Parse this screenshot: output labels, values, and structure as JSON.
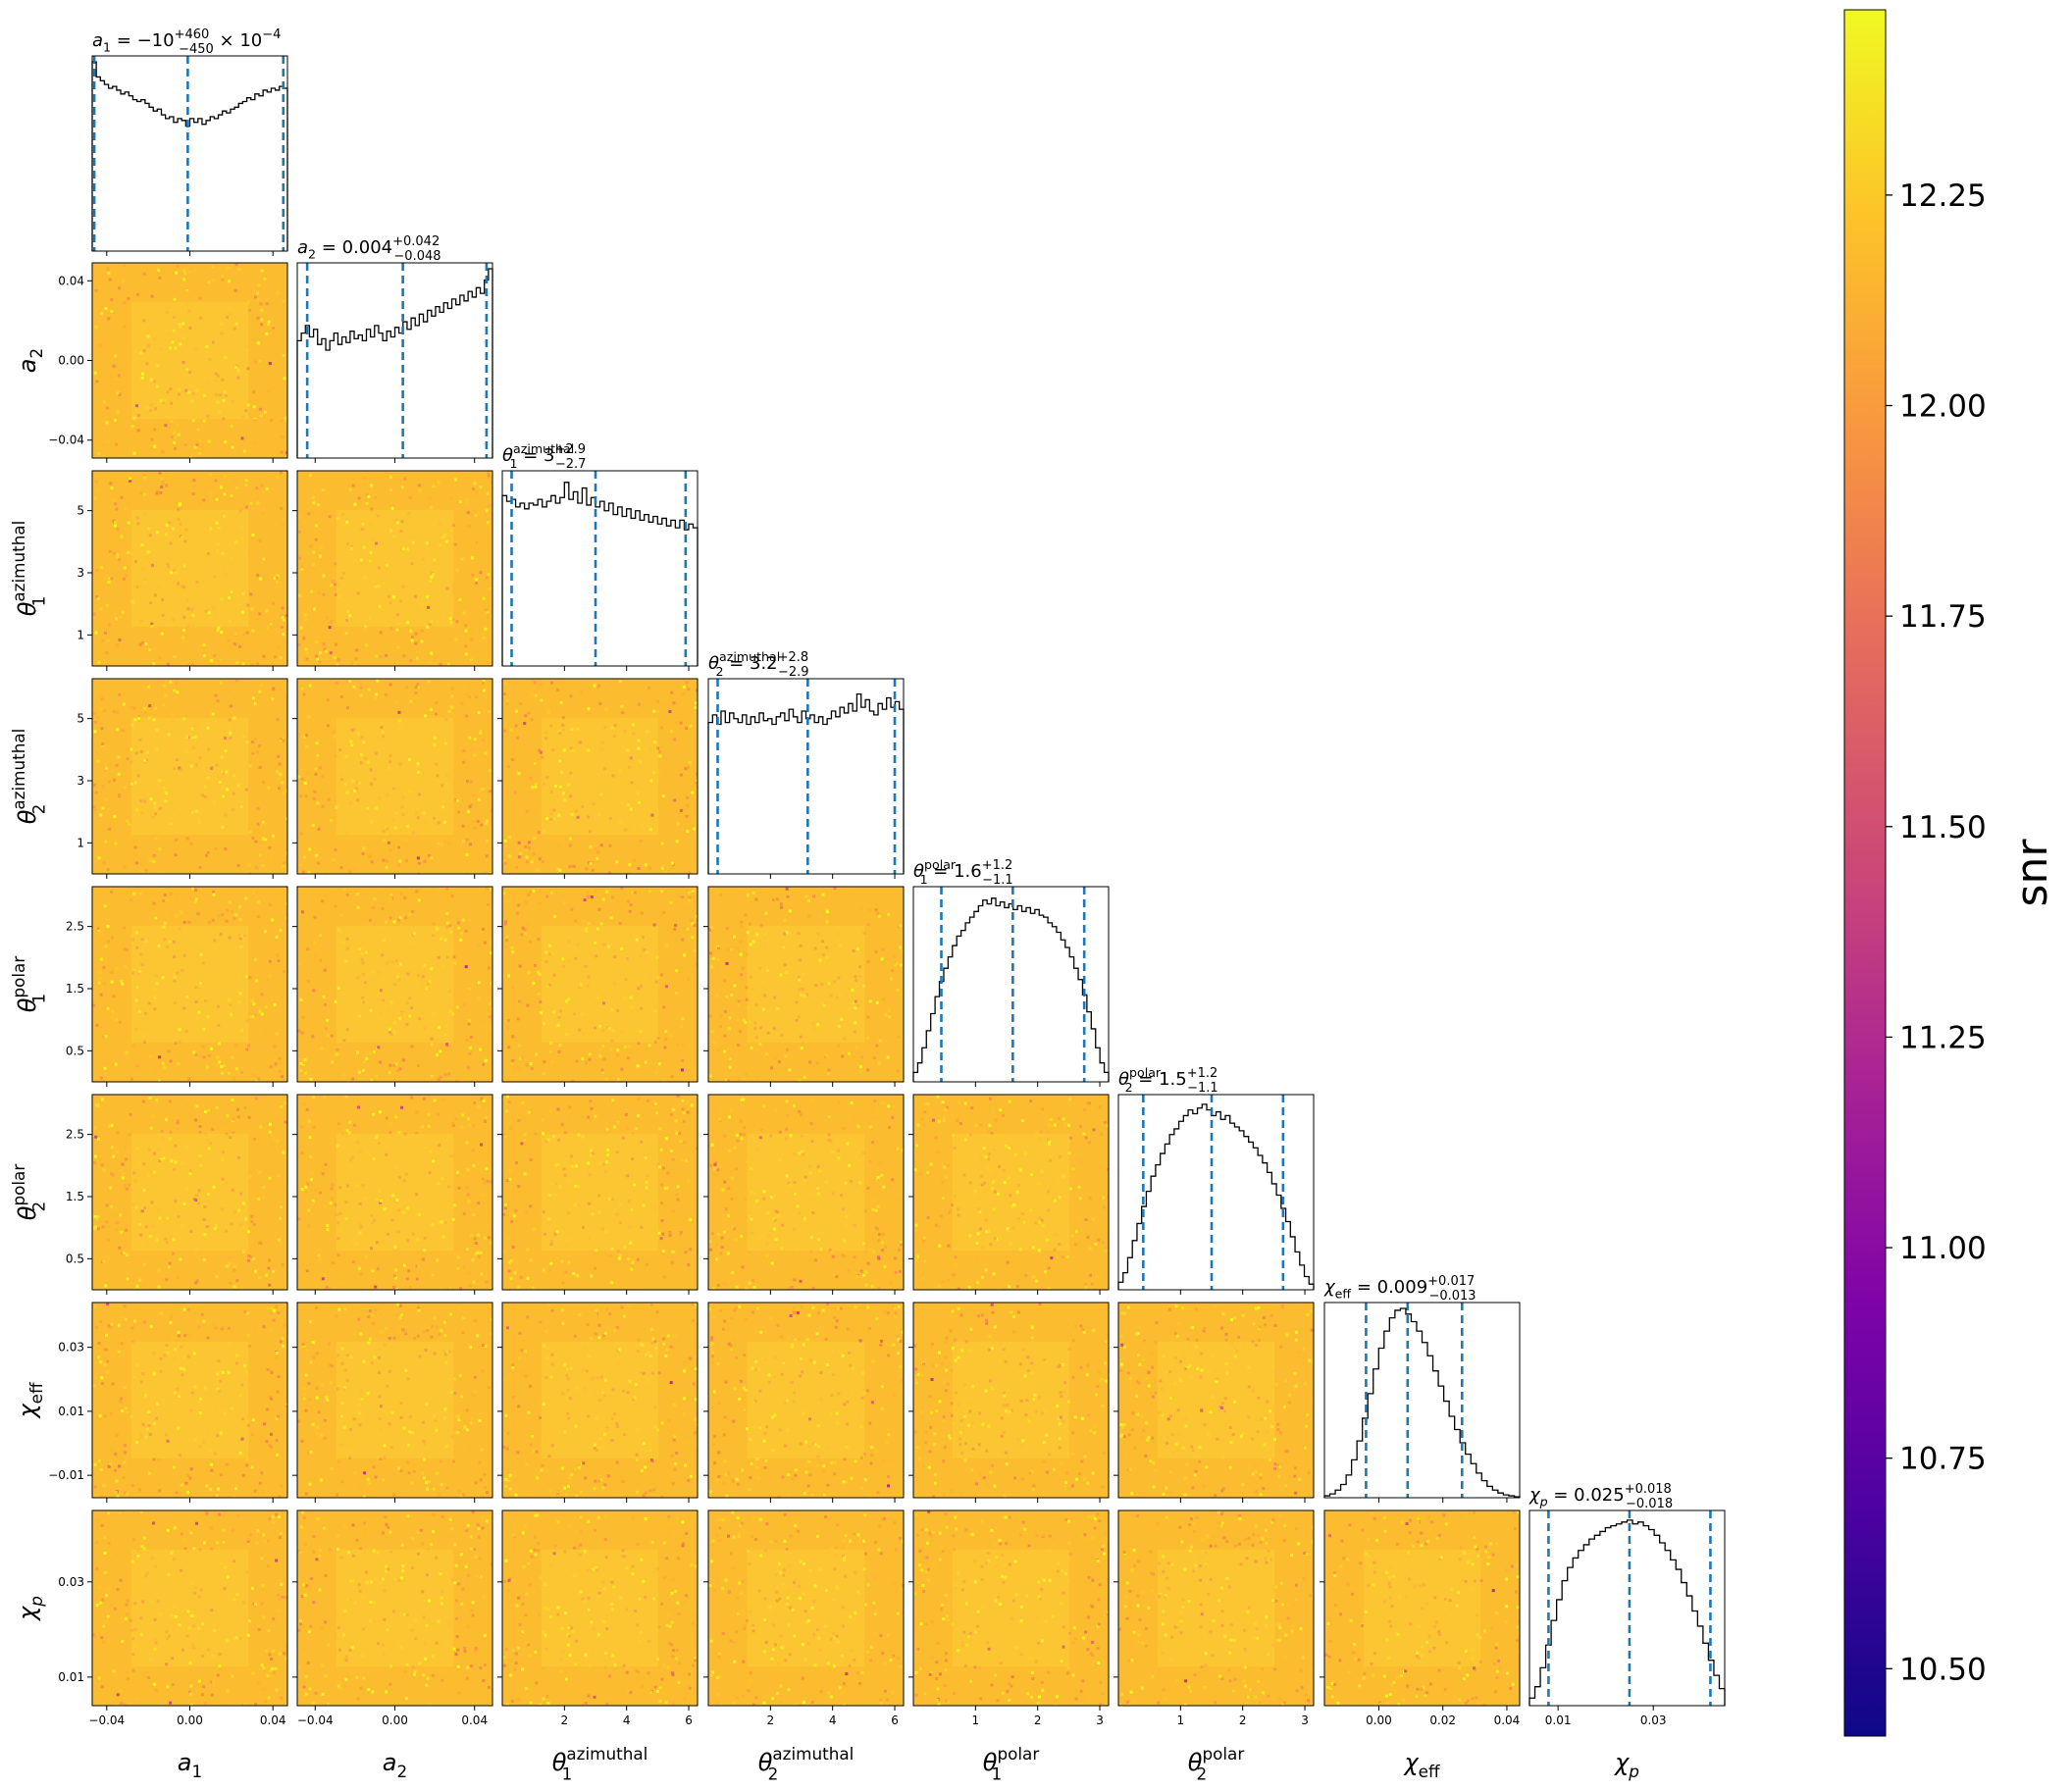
{
  "chart_data": {
    "type": "corner",
    "colormap": "plasma",
    "colorbar": {
      "label": "snr",
      "range": [
        10.42,
        12.47
      ],
      "ticks": [
        "10.50",
        "10.75",
        "11.00",
        "11.25",
        "11.50",
        "11.75",
        "12.00",
        "12.25"
      ],
      "tick_values": [
        10.5,
        10.75,
        11.0,
        11.25,
        11.5,
        11.75,
        12.0,
        12.25
      ]
    },
    "hist_color": "#000000",
    "quantile_line_color": "#1f77b4",
    "parameters": [
      {
        "id": "a1",
        "base": "a",
        "sub": "1",
        "sup": "",
        "range": [
          -0.047,
          0.047
        ],
        "ticks": [
          -0.04,
          0.0,
          0.04
        ],
        "tick_labels": [
          "−0.04",
          "0.00",
          "0.04"
        ],
        "title": {
          "pre": " = −10",
          "sup": "+460",
          "sub": "−450",
          "post": " × 10",
          "post_sup": "−4"
        },
        "quantiles": [
          -0.046,
          -0.001,
          0.045
        ],
        "hist": [
          1.0,
          0.92,
          0.9,
          0.88,
          0.86,
          0.87,
          0.85,
          0.83,
          0.84,
          0.82,
          0.8,
          0.79,
          0.8,
          0.78,
          0.76,
          0.74,
          0.75,
          0.72,
          0.7,
          0.71,
          0.68,
          0.7,
          0.69,
          0.66,
          0.7,
          0.68,
          0.7,
          0.67,
          0.69,
          0.71,
          0.7,
          0.72,
          0.74,
          0.73,
          0.75,
          0.76,
          0.78,
          0.79,
          0.81,
          0.8,
          0.83,
          0.82,
          0.85,
          0.84,
          0.86,
          0.85,
          0.87,
          0.86
        ]
      },
      {
        "id": "a2",
        "base": "a",
        "sub": "2",
        "sup": "",
        "range": [
          -0.049,
          0.049
        ],
        "ticks": [
          -0.04,
          0.0,
          0.04
        ],
        "tick_labels": [
          "−0.04",
          "0.00",
          "0.04"
        ],
        "title": {
          "pre": " = 0.004",
          "sup": "+0.042",
          "sub": "−0.048",
          "post": "",
          "post_sup": ""
        },
        "quantiles": [
          -0.044,
          0.004,
          0.046
        ],
        "hist": [
          0.62,
          0.66,
          0.7,
          0.64,
          0.68,
          0.6,
          0.63,
          0.57,
          0.62,
          0.66,
          0.6,
          0.64,
          0.61,
          0.67,
          0.63,
          0.65,
          0.62,
          0.68,
          0.64,
          0.7,
          0.66,
          0.62,
          0.67,
          0.64,
          0.69,
          0.66,
          0.72,
          0.68,
          0.74,
          0.7,
          0.76,
          0.72,
          0.78,
          0.75,
          0.8,
          0.77,
          0.82,
          0.79,
          0.84,
          0.81,
          0.86,
          0.83,
          0.88,
          0.85,
          0.9,
          0.87,
          0.94,
          1.0
        ]
      },
      {
        "id": "t1az",
        "base": "θ",
        "sub": "1",
        "sup": "azimuthal",
        "range": [
          0.0,
          6.2832
        ],
        "ticks": [
          2,
          4,
          6
        ],
        "tick_labels": [
          "2",
          "4",
          "6"
        ],
        "title": {
          "pre": " = 3",
          "sup": "+2.9",
          "sub": "−2.7",
          "post": "",
          "post_sup": ""
        },
        "quantiles": [
          0.3,
          3.0,
          5.9
        ],
        "hist": [
          0.9,
          0.87,
          0.88,
          0.84,
          0.86,
          0.83,
          0.86,
          0.85,
          0.88,
          0.84,
          0.87,
          0.9,
          0.86,
          0.89,
          0.97,
          0.88,
          0.92,
          0.86,
          0.94,
          0.85,
          0.89,
          0.84,
          0.87,
          0.82,
          0.86,
          0.8,
          0.84,
          0.79,
          0.83,
          0.78,
          0.82,
          0.77,
          0.8,
          0.76,
          0.79,
          0.75,
          0.78,
          0.74,
          0.77,
          0.73,
          0.77,
          0.72,
          0.75,
          0.73
        ]
      },
      {
        "id": "t2az",
        "base": "θ",
        "sub": "2",
        "sup": "azimuthal",
        "range": [
          0.0,
          6.2832
        ],
        "ticks": [
          2,
          4,
          6
        ],
        "tick_labels": [
          "2",
          "4",
          "6"
        ],
        "title": {
          "pre": " = 3.2",
          "sup": "+2.8",
          "sub": "−2.9",
          "post": "",
          "post_sup": ""
        },
        "quantiles": [
          0.3,
          3.2,
          6.0
        ],
        "hist": [
          0.8,
          0.84,
          0.79,
          0.86,
          0.8,
          0.85,
          0.82,
          0.8,
          0.84,
          0.79,
          0.83,
          0.8,
          0.85,
          0.81,
          0.82,
          0.79,
          0.83,
          0.85,
          0.81,
          0.87,
          0.83,
          0.8,
          0.86,
          0.82,
          0.84,
          0.8,
          0.83,
          0.79,
          0.82,
          0.86,
          0.83,
          0.88,
          0.85,
          0.9,
          0.86,
          0.95,
          0.88,
          0.92,
          0.86,
          0.84,
          0.9,
          0.87,
          0.93,
          0.88,
          0.91,
          0.87
        ]
      },
      {
        "id": "t1pol",
        "base": "θ",
        "sub": "1",
        "sup": "polar",
        "range": [
          0.0,
          3.1416
        ],
        "ticks": [
          1,
          2,
          3
        ],
        "tick_labels": [
          "1",
          "2",
          "3"
        ],
        "title": {
          "pre": " = 1.6",
          "sup": "+1.2",
          "sub": "−1.1",
          "post": "",
          "post_sup": ""
        },
        "quantiles": [
          0.45,
          1.6,
          2.75
        ],
        "hist": [
          0.05,
          0.1,
          0.18,
          0.27,
          0.36,
          0.45,
          0.53,
          0.6,
          0.66,
          0.72,
          0.77,
          0.8,
          0.84,
          0.87,
          0.9,
          0.93,
          0.96,
          0.94,
          0.97,
          0.93,
          0.95,
          0.92,
          0.94,
          0.91,
          0.93,
          0.9,
          0.92,
          0.89,
          0.91,
          0.88,
          0.87,
          0.84,
          0.82,
          0.79,
          0.75,
          0.71,
          0.66,
          0.6,
          0.54,
          0.46,
          0.37,
          0.28,
          0.18,
          0.1,
          0.05
        ]
      },
      {
        "id": "t2pol",
        "base": "θ",
        "sub": "2",
        "sup": "polar",
        "range": [
          0.0,
          3.1416
        ],
        "ticks": [
          1,
          2,
          3
        ],
        "tick_labels": [
          "1",
          "2",
          "3"
        ],
        "title": {
          "pre": " = 1.5",
          "sup": "+1.2",
          "sub": "−1.1",
          "post": "",
          "post_sup": ""
        },
        "quantiles": [
          0.4,
          1.5,
          2.65
        ],
        "hist": [
          0.04,
          0.09,
          0.17,
          0.26,
          0.35,
          0.44,
          0.52,
          0.6,
          0.66,
          0.72,
          0.77,
          0.82,
          0.85,
          0.89,
          0.92,
          0.95,
          0.93,
          0.96,
          0.98,
          0.95,
          0.92,
          0.94,
          0.9,
          0.92,
          0.88,
          0.86,
          0.84,
          0.81,
          0.78,
          0.75,
          0.71,
          0.67,
          0.62,
          0.56,
          0.5,
          0.43,
          0.36,
          0.28,
          0.2,
          0.13,
          0.07,
          0.03
        ]
      },
      {
        "id": "chieff",
        "base": "χ",
        "sub": "eff",
        "sup": "",
        "range": [
          -0.017,
          0.044
        ],
        "ticks": [
          0.0,
          0.02,
          0.04
        ],
        "tick_labels": [
          "0.00",
          "0.02",
          "0.04"
        ],
        "title": {
          "pre": " = 0.009",
          "sup": "+0.017",
          "sub": "−0.013",
          "post": "",
          "post_sup": ""
        },
        "quantiles": [
          -0.004,
          0.009,
          0.026
        ],
        "hist": [
          0.01,
          0.02,
          0.04,
          0.07,
          0.12,
          0.2,
          0.3,
          0.42,
          0.55,
          0.68,
          0.79,
          0.88,
          0.95,
          0.99,
          1.0,
          0.97,
          0.93,
          0.88,
          0.82,
          0.75,
          0.67,
          0.59,
          0.51,
          0.43,
          0.36,
          0.29,
          0.23,
          0.18,
          0.13,
          0.09,
          0.06,
          0.04,
          0.025,
          0.015,
          0.01,
          0.005
        ]
      },
      {
        "id": "chip",
        "base": "χ",
        "sub": "p",
        "sup": "",
        "range": [
          0.004,
          0.045
        ],
        "ticks": [
          0.01,
          0.03
        ],
        "tick_labels": [
          "0.01",
          "0.03"
        ],
        "title": {
          "pre": " = 0.025",
          "sup": "+0.018",
          "sub": "−0.018",
          "post": "",
          "post_sup": ""
        },
        "quantiles": [
          0.008,
          0.025,
          0.042
        ],
        "hist": [
          0.04,
          0.1,
          0.2,
          0.32,
          0.45,
          0.56,
          0.66,
          0.73,
          0.78,
          0.82,
          0.85,
          0.88,
          0.9,
          0.92,
          0.94,
          0.95,
          0.96,
          0.97,
          0.98,
          0.96,
          0.97,
          0.95,
          0.93,
          0.9,
          0.86,
          0.82,
          0.77,
          0.72,
          0.65,
          0.58,
          0.5,
          0.42,
          0.33,
          0.24,
          0.16,
          0.09
        ]
      }
    ],
    "scatter_y_ticks": {
      "a2": {
        "ticks": [
          -0.04,
          0.0,
          0.04
        ],
        "labels": [
          "−0.04",
          "0.00",
          "0.04"
        ]
      },
      "t1az": {
        "ticks": [
          1,
          3,
          5
        ],
        "labels": [
          "1",
          "3",
          "5"
        ]
      },
      "t2az": {
        "ticks": [
          1,
          3,
          5
        ],
        "labels": [
          "1",
          "3",
          "5"
        ]
      },
      "t1pol": {
        "ticks": [
          0.5,
          1.5,
          2.5
        ],
        "labels": [
          "0.5",
          "1.5",
          "2.5"
        ]
      },
      "t2pol": {
        "ticks": [
          0.5,
          1.5,
          2.5
        ],
        "labels": [
          "0.5",
          "1.5",
          "2.5"
        ]
      },
      "chieff": {
        "ticks": [
          -0.01,
          0.01,
          0.03
        ],
        "labels": [
          "−0.01",
          "0.01",
          "0.03"
        ]
      },
      "chip": {
        "ticks": [
          0.01,
          0.03
        ],
        "labels": [
          "0.01",
          "0.03"
        ]
      }
    }
  }
}
